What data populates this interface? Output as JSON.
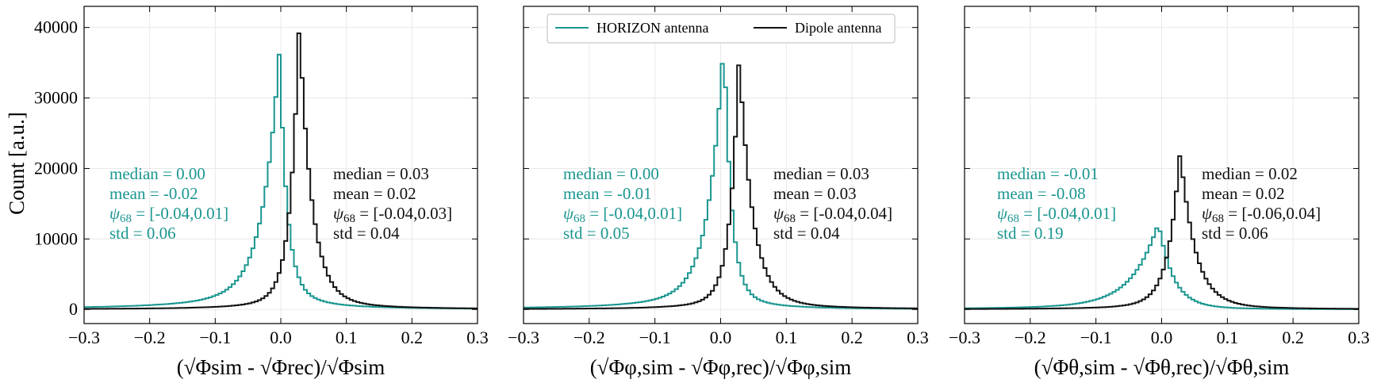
{
  "colors": {
    "horizon": "#1a9690",
    "dipole": "#111111",
    "grid": "#e8e8e8"
  },
  "ylabel": "Count [a.u.]",
  "legend": {
    "horizon": "HORIZON antenna",
    "dipole": "Dipole antenna"
  },
  "chart_data": [
    {
      "type": "histogram",
      "xlabel": "(√Φsim - √Φrec)/√Φsim",
      "xlim": [
        -0.3,
        0.3
      ],
      "ylim": [
        -2000,
        43000
      ],
      "xticks": [
        "−0.3",
        "−0.2",
        "−0.1",
        "0.0",
        "0.1",
        "0.2",
        "0.3"
      ],
      "yticks": [
        "0",
        "10000",
        "20000",
        "30000",
        "40000"
      ],
      "grid": true,
      "series": [
        {
          "name": "HORIZON antenna",
          "peak_x": -0.002,
          "peak": 36800,
          "width_left": 0.022,
          "width_right": 0.01,
          "tail_left": 0.23,
          "tail_right": 0.12,
          "stats": [
            "median = 0.00",
            "mean = -0.02",
            "[-0.04,0.01]",
            "std = 0.06"
          ]
        },
        {
          "name": "Dipole antenna",
          "peak_x": 0.028,
          "peak": 40500,
          "width_left": 0.012,
          "width_right": 0.018,
          "tail_left": 0.1,
          "tail_right": 0.12,
          "stats": [
            "median = 0.03",
            "mean = 0.02",
            "[-0.04,0.03]",
            "std = 0.04"
          ]
        }
      ]
    },
    {
      "type": "histogram",
      "xlabel": "(√Φφ,sim - √Φφ,rec)/√Φφ,sim",
      "xlim": [
        -0.3,
        0.3
      ],
      "ylim": [
        -2000,
        43000
      ],
      "xticks": [
        "−0.3",
        "−0.2",
        "−0.1",
        "0.0",
        "0.1",
        "0.2",
        "0.3"
      ],
      "grid": true,
      "series": [
        {
          "name": "HORIZON antenna",
          "peak_x": 0.005,
          "peak": 38500,
          "width_left": 0.02,
          "width_right": 0.01,
          "tail_left": 0.2,
          "tail_right": 0.1,
          "stats": [
            "median = 0.00",
            "mean = -0.01",
            "[-0.04,0.01]",
            "std = 0.05"
          ]
        },
        {
          "name": "Dipole antenna",
          "peak_x": 0.028,
          "peak": 35800,
          "width_left": 0.012,
          "width_right": 0.019,
          "tail_left": 0.1,
          "tail_right": 0.13,
          "stats": [
            "median = 0.03",
            "mean = 0.03",
            "[-0.04,0.04]",
            "std = 0.04"
          ]
        }
      ]
    },
    {
      "type": "histogram",
      "xlabel": "(√Φθ,sim - √Φθ,rec)/√Φθ,sim",
      "xlim": [
        -0.3,
        0.3
      ],
      "ylim": [
        -2000,
        43000
      ],
      "xticks": [
        "−0.3",
        "−0.2",
        "−0.1",
        "0.0",
        "0.1",
        "0.2",
        "0.3"
      ],
      "grid": true,
      "series": [
        {
          "name": "HORIZON antenna",
          "peak_x": -0.005,
          "peak": 12200,
          "width_left": 0.035,
          "width_right": 0.022,
          "tail_left": 0.3,
          "tail_right": 0.12,
          "stats": [
            "median = -0.01",
            "mean = -0.08",
            "[-0.04,0.01]",
            "std = 0.19"
          ]
        },
        {
          "name": "Dipole antenna",
          "peak_x": 0.028,
          "peak": 22300,
          "width_left": 0.016,
          "width_right": 0.022,
          "tail_left": 0.12,
          "tail_right": 0.13,
          "stats": [
            "median = 0.02",
            "mean = 0.02",
            "[-0.06,0.04]",
            "std = 0.06"
          ]
        }
      ]
    }
  ]
}
